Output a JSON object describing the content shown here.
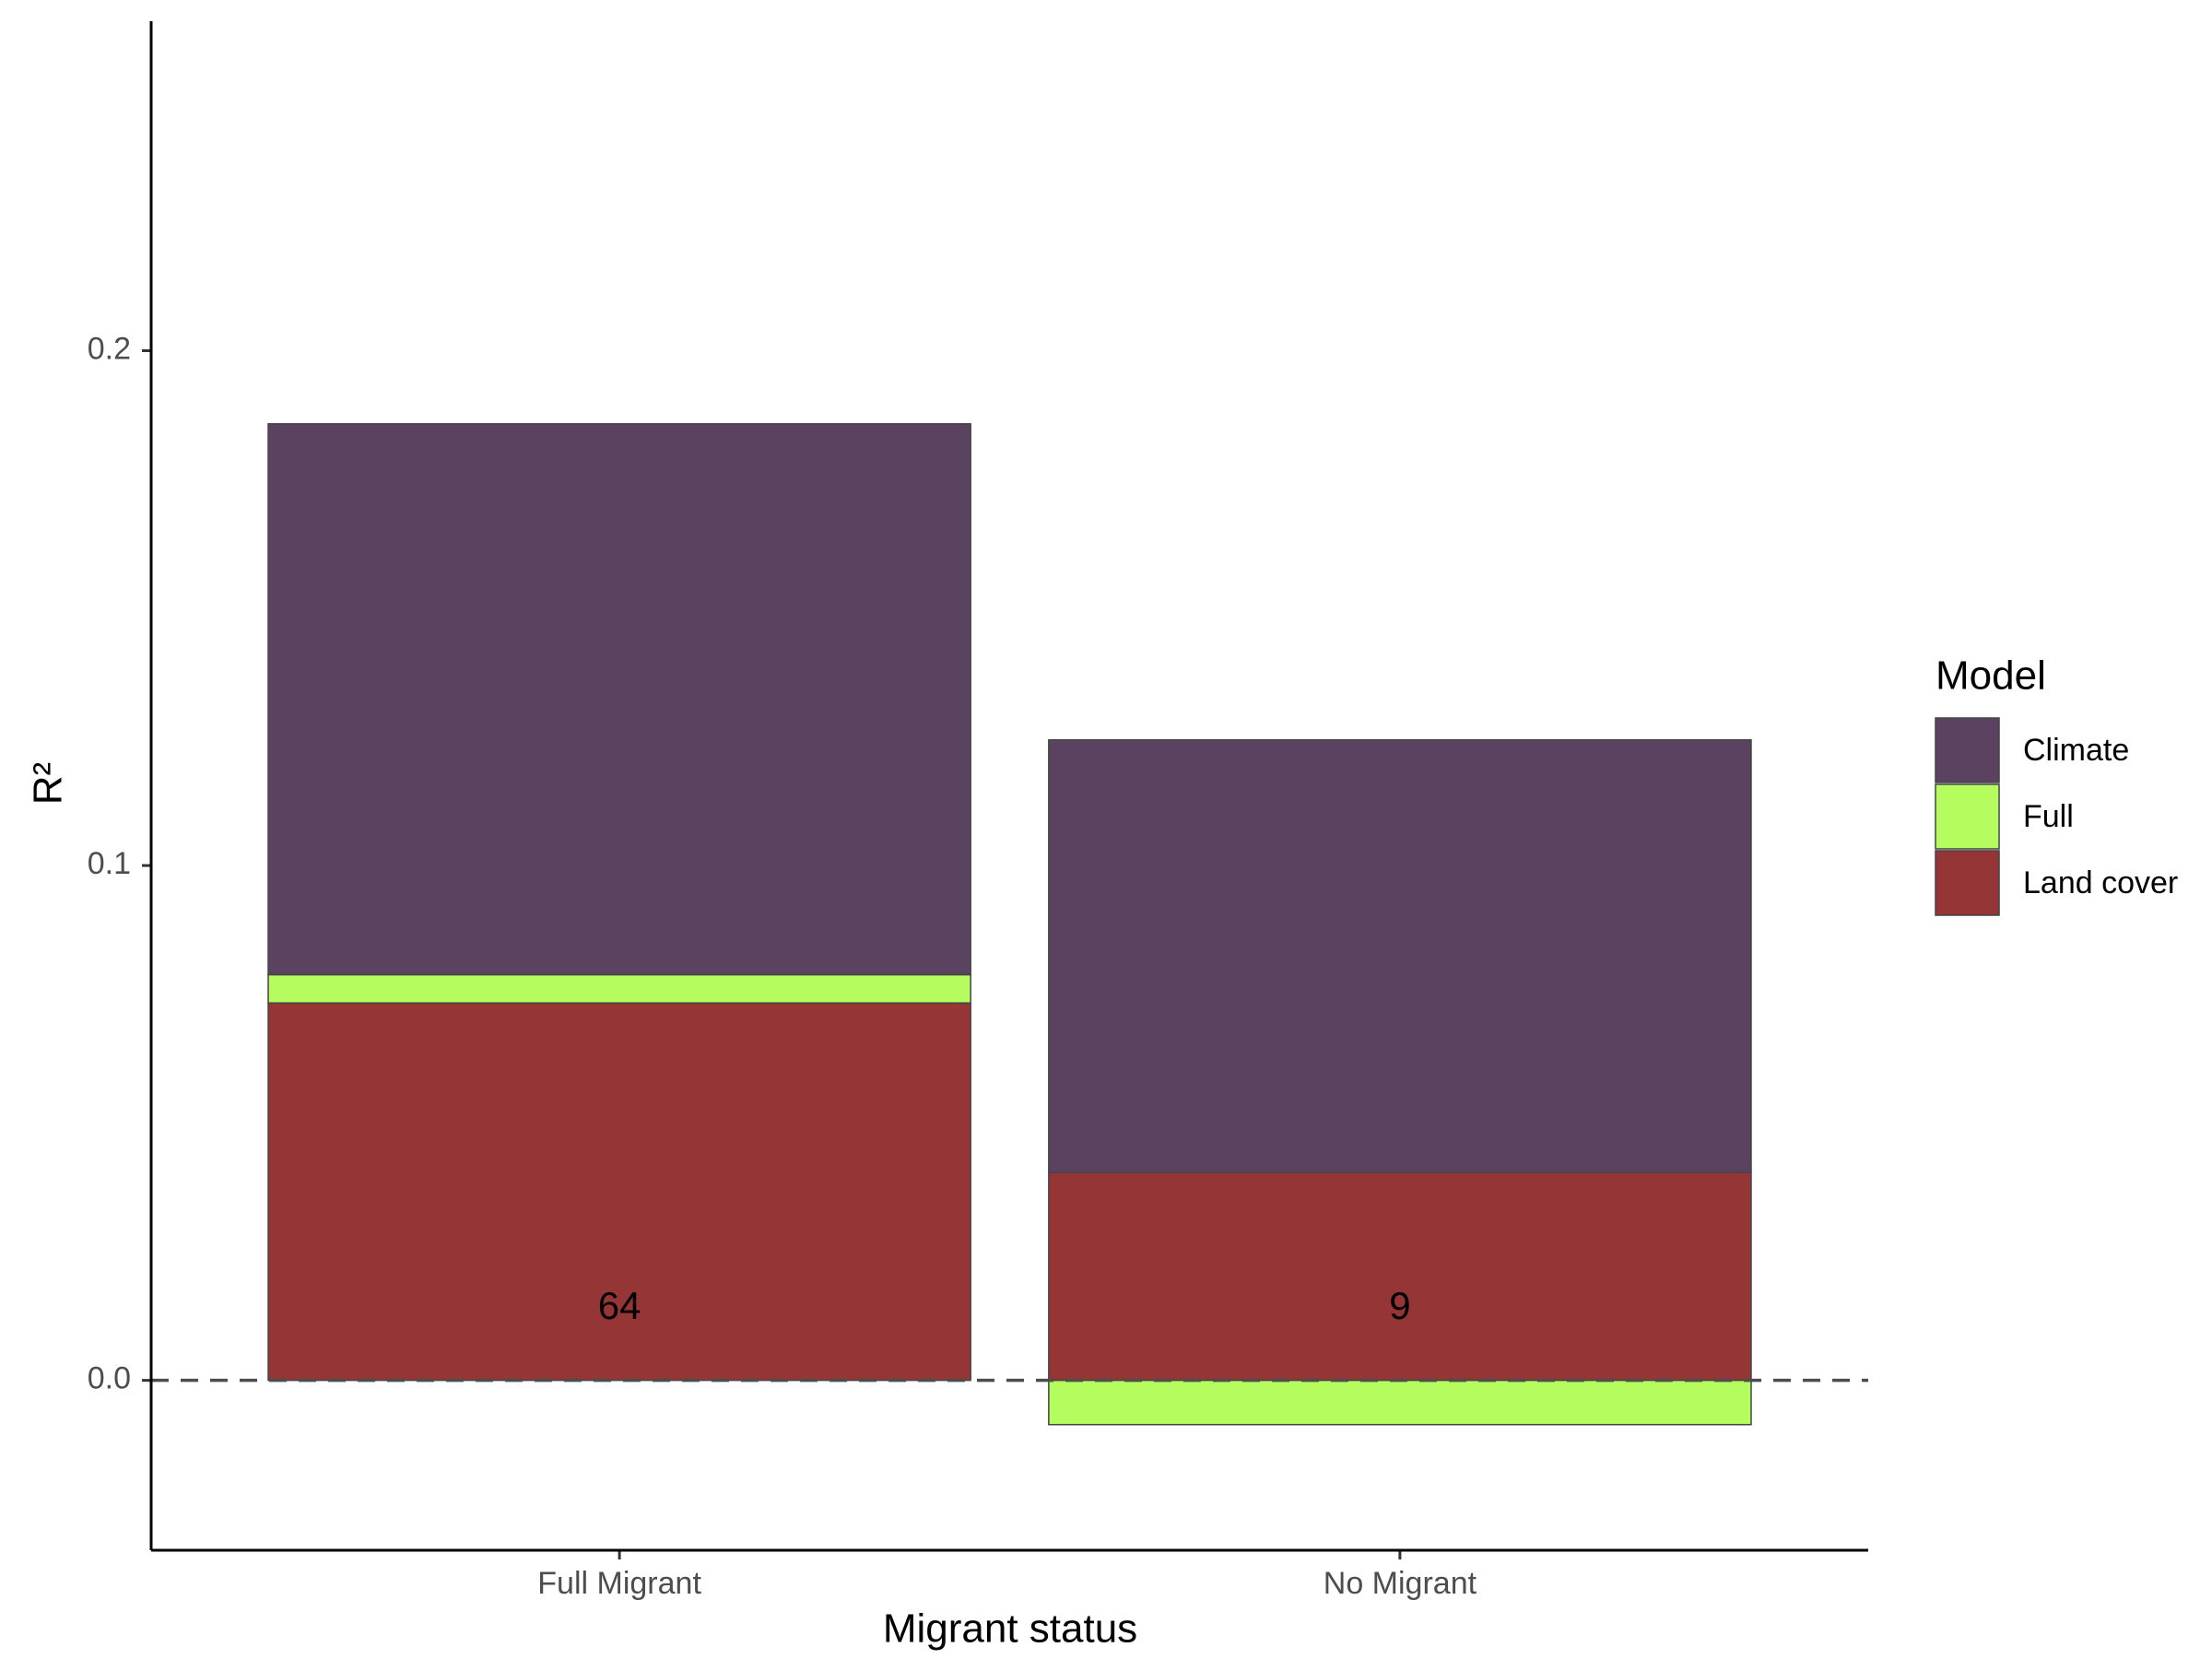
{
  "chart_data": {
    "type": "stacked_bar",
    "x_label": "Migrant status",
    "y_label": "R²",
    "categories": [
      "Full Migrant",
      "No Migrant"
    ],
    "series": [
      {
        "name": "Climate",
        "color": "#5a4260",
        "values": [
          0.107,
          0.084
        ]
      },
      {
        "name": "Full",
        "color": "#b5fc5f",
        "values": [
          0.0055,
          -0.0086
        ]
      },
      {
        "name": "Land cover",
        "color": "#953535",
        "values": [
          0.0733,
          0.0404
        ]
      }
    ],
    "annotations": [
      "64",
      "9"
    ],
    "legend_title": "Model",
    "legend_position": "right",
    "ylim": [
      -0.033,
      0.264
    ],
    "yticks": [
      {
        "value": 0,
        "label": "0.0"
      },
      0.1,
      0.2
    ],
    "hline": 0,
    "grid": false
  }
}
